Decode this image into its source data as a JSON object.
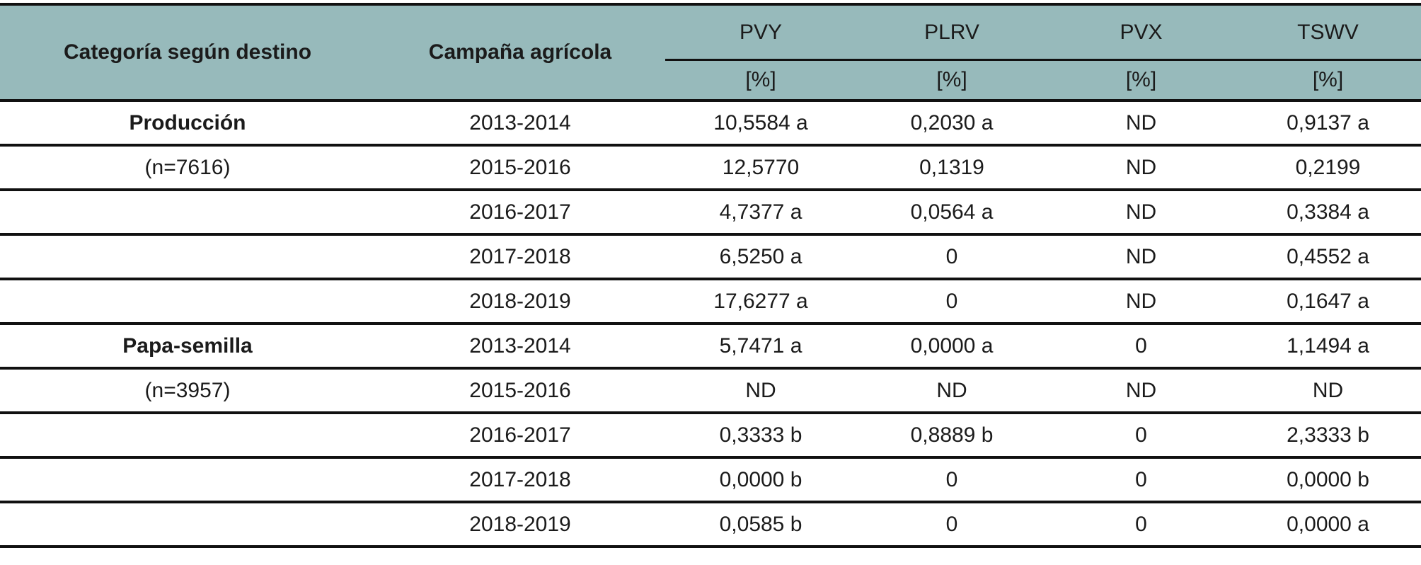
{
  "header": {
    "category": "Categoría según destino",
    "campaign": "Campaña agrícola",
    "columns": [
      {
        "name": "PVY",
        "unit": "[%]"
      },
      {
        "name": "PLRV",
        "unit": "[%]"
      },
      {
        "name": "PVX",
        "unit": "[%]"
      },
      {
        "name": "TSWV",
        "unit": "[%]"
      }
    ]
  },
  "rows": [
    {
      "category": "Producción",
      "campaign": "2013-2014",
      "values": [
        "10,5584 a",
        "0,2030 a",
        "ND",
        "0,9137 a"
      ]
    },
    {
      "category": "(n=7616)",
      "campaign": "2015-2016",
      "values": [
        "12,5770",
        "0,1319",
        "ND",
        "0,2199"
      ]
    },
    {
      "category": "",
      "campaign": "2016-2017",
      "values": [
        "4,7377 a",
        "0,0564 a",
        "ND",
        "0,3384 a"
      ]
    },
    {
      "category": "",
      "campaign": "2017-2018",
      "values": [
        "6,5250 a",
        "0",
        "ND",
        "0,4552 a"
      ]
    },
    {
      "category": "",
      "campaign": "2018-2019",
      "values": [
        "17,6277 a",
        "0",
        "ND",
        "0,1647 a"
      ]
    },
    {
      "category": "Papa-semilla",
      "campaign": "2013-2014",
      "values": [
        "5,7471 a",
        "0,0000 a",
        "0",
        "1,1494 a"
      ]
    },
    {
      "category": "(n=3957)",
      "campaign": "2015-2016",
      "values": [
        "ND",
        "ND",
        "ND",
        "ND"
      ]
    },
    {
      "category": "",
      "campaign": "2016-2017",
      "values": [
        "0,3333 b",
        "0,8889 b",
        "0",
        "2,3333 b"
      ]
    },
    {
      "category": "",
      "campaign": "2017-2018",
      "values": [
        "0,0000 b",
        "0",
        "0",
        "0,0000 b"
      ]
    },
    {
      "category": "",
      "campaign": "2018-2019",
      "values": [
        "0,0585 b",
        "0",
        "0",
        "0,0000 a"
      ]
    }
  ]
}
